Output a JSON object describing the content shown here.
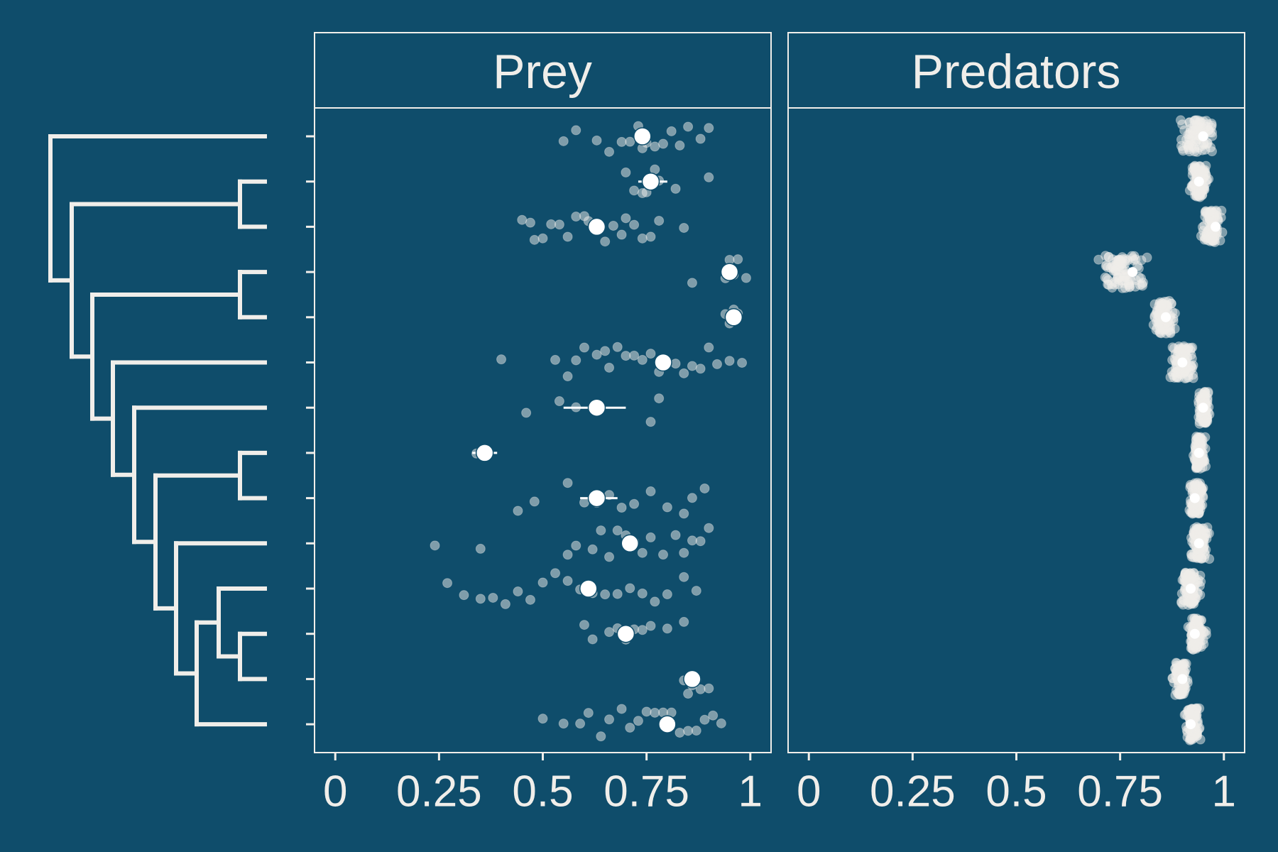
{
  "chart_data": {
    "type": "scatter",
    "description_layout": "jittered strip plot faceted in two panels with a phylogenetic tree on the left; large white points with horizontal error bars show means",
    "background": "#0f4d6b",
    "foreground": "#f0eeea",
    "xlim": [
      -0.05,
      1.05
    ],
    "x_ticks": [
      0,
      0.25,
      0.5,
      0.75,
      1
    ],
    "x_tick_labels": [
      "0",
      "0.25",
      "0.5",
      "0.75",
      "1"
    ],
    "n_taxa": 14,
    "grid": false,
    "tree": {
      "leaves": [
        1,
        2,
        3,
        4,
        5,
        6,
        7,
        8,
        9,
        10,
        11,
        12,
        13,
        14
      ],
      "edges": [
        [
          0.0,
          1.0,
          1.0,
          1
        ],
        [
          0.0,
          1.0,
          0.0,
          3.18
        ],
        [
          0.09,
          0.36,
          2.5,
          3.18
        ],
        [
          0.88,
          0.7,
          0.94,
          1
        ],
        [
          0.08,
          0.0,
          0.0,
          0
        ],
        [
          0.09,
          0.34,
          0.34,
          4.0
        ],
        [
          0.18,
          0.59,
          0.48,
          4.0
        ],
        [
          0.86,
          0.6,
          0.94,
          1
        ],
        [
          0.26,
          0.58,
          0.58,
          4.0
        ],
        [
          0.35,
          0.69,
          0.69,
          4.0
        ],
        [
          0.44,
          0.82,
          0.83,
          0
        ],
        [
          0.53,
          0.96,
          0.96,
          0
        ],
        [
          0.62,
          1.0,
          1.0,
          0
        ],
        [
          0.71,
          1.0,
          1.0,
          0
        ]
      ]
    },
    "panels": [
      {
        "label": "Prey",
        "series": [
          {
            "row": 1,
            "mean": 0.74,
            "ci": [
              0.72,
              0.76
            ],
            "points": [
              0.55,
              0.58,
              0.63,
              0.66,
              0.69,
              0.71,
              0.73,
              0.74,
              0.75,
              0.77,
              0.79,
              0.81,
              0.83,
              0.85,
              0.88,
              0.9
            ]
          },
          {
            "row": 2,
            "mean": 0.76,
            "ci": [
              0.73,
              0.8
            ],
            "points": [
              0.7,
              0.72,
              0.74,
              0.75,
              0.77,
              0.78,
              0.82,
              0.9
            ]
          },
          {
            "row": 3,
            "mean": 0.63,
            "ci": [
              0.61,
              0.65
            ],
            "points": [
              0.45,
              0.47,
              0.48,
              0.5,
              0.52,
              0.54,
              0.56,
              0.58,
              0.6,
              0.61,
              0.63,
              0.64,
              0.65,
              0.67,
              0.69,
              0.7,
              0.72,
              0.74,
              0.76,
              0.78,
              0.84
            ]
          },
          {
            "row": 4,
            "mean": 0.95,
            "ci": [
              0.94,
              0.96
            ],
            "points": [
              0.86,
              0.94,
              0.95,
              0.96,
              0.97,
              0.99
            ]
          },
          {
            "row": 5,
            "mean": 0.96,
            "ci": [
              0.95,
              0.97
            ],
            "points": [
              0.94,
              0.95,
              0.96,
              0.97
            ]
          },
          {
            "row": 6,
            "mean": 0.79,
            "ci": [
              0.77,
              0.81
            ],
            "points": [
              0.4,
              0.53,
              0.56,
              0.58,
              0.6,
              0.63,
              0.65,
              0.66,
              0.68,
              0.7,
              0.72,
              0.74,
              0.76,
              0.78,
              0.8,
              0.82,
              0.84,
              0.86,
              0.88,
              0.9,
              0.92,
              0.95,
              0.98
            ]
          },
          {
            "row": 7,
            "mean": 0.63,
            "ci": [
              0.55,
              0.7
            ],
            "points": [
              0.46,
              0.54,
              0.58,
              0.76,
              0.78
            ]
          },
          {
            "row": 8,
            "mean": 0.36,
            "ci": [
              0.33,
              0.39
            ],
            "points": [
              0.34
            ]
          },
          {
            "row": 9,
            "mean": 0.63,
            "ci": [
              0.59,
              0.68
            ],
            "points": [
              0.44,
              0.48,
              0.56,
              0.6,
              0.63,
              0.66,
              0.69,
              0.72,
              0.76,
              0.8,
              0.84,
              0.86,
              0.89
            ]
          },
          {
            "row": 10,
            "mean": 0.71,
            "ci": [
              0.69,
              0.73
            ],
            "points": [
              0.24,
              0.35,
              0.56,
              0.58,
              0.62,
              0.64,
              0.66,
              0.68,
              0.7,
              0.72,
              0.74,
              0.76,
              0.79,
              0.82,
              0.84,
              0.86,
              0.88,
              0.9
            ]
          },
          {
            "row": 11,
            "mean": 0.61,
            "ci": [
              0.59,
              0.63
            ],
            "points": [
              0.27,
              0.31,
              0.35,
              0.38,
              0.41,
              0.44,
              0.47,
              0.5,
              0.53,
              0.56,
              0.59,
              0.62,
              0.65,
              0.68,
              0.71,
              0.74,
              0.77,
              0.8,
              0.84,
              0.87
            ]
          },
          {
            "row": 12,
            "mean": 0.7,
            "ci": [
              0.68,
              0.72
            ],
            "points": [
              0.6,
              0.62,
              0.66,
              0.68,
              0.7,
              0.72,
              0.74,
              0.76,
              0.8,
              0.84
            ]
          },
          {
            "row": 13,
            "mean": 0.86,
            "ci": [
              0.85,
              0.88
            ],
            "points": [
              0.84,
              0.85,
              0.86,
              0.87,
              0.88,
              0.9
            ]
          },
          {
            "row": 14,
            "mean": 0.8,
            "ci": [
              0.78,
              0.82
            ],
            "points": [
              0.5,
              0.55,
              0.59,
              0.61,
              0.64,
              0.66,
              0.69,
              0.71,
              0.73,
              0.75,
              0.77,
              0.79,
              0.81,
              0.83,
              0.85,
              0.87,
              0.89,
              0.91,
              0.93
            ]
          }
        ]
      },
      {
        "label": "Predators",
        "series": [
          {
            "row": 1,
            "mean": 0.95,
            "ci": [
              0.94,
              0.96
            ],
            "spread": [
              0.88,
              0.99
            ],
            "points": []
          },
          {
            "row": 2,
            "mean": 0.94,
            "ci": [
              0.93,
              0.95
            ],
            "spread": [
              0.91,
              0.97
            ],
            "points": []
          },
          {
            "row": 3,
            "mean": 0.98,
            "ci": [
              0.97,
              0.99
            ],
            "spread": [
              0.94,
              1.0
            ],
            "points": []
          },
          {
            "row": 4,
            "mean": 0.78,
            "ci": [
              0.77,
              0.79
            ],
            "spread": [
              0.68,
              0.83
            ],
            "points": []
          },
          {
            "row": 5,
            "mean": 0.86,
            "ci": [
              0.85,
              0.87
            ],
            "spread": [
              0.82,
              0.89
            ],
            "points": []
          },
          {
            "row": 6,
            "mean": 0.9,
            "ci": [
              0.89,
              0.91
            ],
            "spread": [
              0.86,
              0.94
            ],
            "points": []
          },
          {
            "row": 7,
            "mean": 0.95,
            "ci": [
              0.94,
              0.96
            ],
            "spread": [
              0.93,
              0.97
            ],
            "points": []
          },
          {
            "row": 8,
            "mean": 0.94,
            "ci": [
              0.93,
              0.95
            ],
            "spread": [
              0.92,
              0.96
            ],
            "points": []
          },
          {
            "row": 9,
            "mean": 0.93,
            "ci": [
              0.92,
              0.94
            ],
            "spread": [
              0.91,
              0.96
            ],
            "points": []
          },
          {
            "row": 10,
            "mean": 0.94,
            "ci": [
              0.93,
              0.95
            ],
            "spread": [
              0.91,
              0.97
            ],
            "points": []
          },
          {
            "row": 11,
            "mean": 0.92,
            "ci": [
              0.91,
              0.93
            ],
            "spread": [
              0.89,
              0.95
            ],
            "points": []
          },
          {
            "row": 12,
            "mean": 0.93,
            "ci": [
              0.92,
              0.94
            ],
            "spread": [
              0.91,
              0.96
            ],
            "points": []
          },
          {
            "row": 13,
            "mean": 0.9,
            "ci": [
              0.89,
              0.91
            ],
            "spread": [
              0.87,
              0.92
            ],
            "points": []
          },
          {
            "row": 14,
            "mean": 0.92,
            "ci": [
              0.91,
              0.93
            ],
            "spread": [
              0.9,
              0.95
            ],
            "points": []
          }
        ]
      }
    ]
  }
}
